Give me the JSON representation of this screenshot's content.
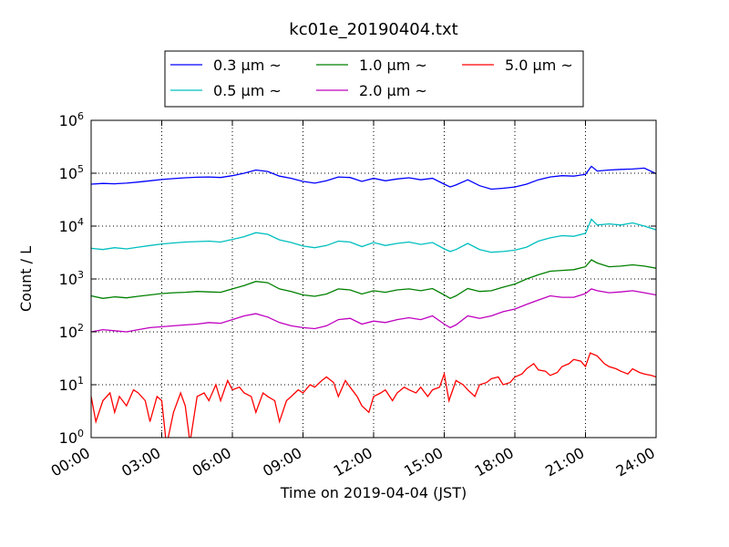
{
  "chart_data": {
    "type": "line",
    "title": "kc01e_20190404.txt",
    "xlabel": "Time on 2019-04-04 (JST)",
    "ylabel": "Count / L",
    "x_unit": "hours",
    "xlim": [
      0,
      24
    ],
    "xticks": [
      0,
      3,
      6,
      9,
      12,
      15,
      18,
      21,
      24
    ],
    "xtick_labels": [
      "00:00",
      "03:00",
      "06:00",
      "09:00",
      "12:00",
      "15:00",
      "18:00",
      "21:00",
      "24:00"
    ],
    "yscale": "log",
    "ylim": [
      1,
      1000000
    ],
    "ytick_exponents": [
      0,
      1,
      2,
      3,
      4,
      5,
      6
    ],
    "ytick_base": "10",
    "grid": true,
    "legend_placement": "top-center",
    "series": [
      {
        "name": "0.3 μm ~",
        "color": "#0000ff",
        "x": [
          0,
          0.5,
          1,
          1.5,
          2,
          2.5,
          3,
          3.5,
          4,
          4.5,
          5,
          5.5,
          6,
          6.5,
          7,
          7.5,
          8,
          8.5,
          9,
          9.5,
          10,
          10.5,
          11,
          11.5,
          12,
          12.5,
          13,
          13.5,
          14,
          14.5,
          15,
          15.25,
          15.5,
          16,
          16.5,
          17,
          17.5,
          18,
          18.5,
          19,
          19.5,
          20,
          20.5,
          21,
          21.25,
          21.5,
          22,
          22.5,
          23,
          23.5,
          24
        ],
        "y": [
          62000,
          64000,
          63000,
          65000,
          68000,
          72000,
          76000,
          79000,
          82000,
          84000,
          85000,
          83000,
          90000,
          100000,
          115000,
          108000,
          88000,
          80000,
          70000,
          65000,
          72000,
          85000,
          83000,
          70000,
          80000,
          72000,
          78000,
          82000,
          75000,
          80000,
          62000,
          55000,
          60000,
          75000,
          58000,
          50000,
          52000,
          55000,
          62000,
          75000,
          85000,
          90000,
          88000,
          95000,
          135000,
          110000,
          115000,
          118000,
          120000,
          125000,
          98000
        ]
      },
      {
        "name": "0.5 μm ~",
        "color": "#00bfbf",
        "x": [
          0,
          0.5,
          1,
          1.5,
          2,
          2.5,
          3,
          3.5,
          4,
          4.5,
          5,
          5.5,
          6,
          6.5,
          7,
          7.5,
          8,
          8.5,
          9,
          9.5,
          10,
          10.5,
          11,
          11.5,
          12,
          12.5,
          13,
          13.5,
          14,
          14.5,
          15,
          15.25,
          15.5,
          16,
          16.5,
          17,
          17.5,
          18,
          18.5,
          19,
          19.5,
          20,
          20.5,
          21,
          21.25,
          21.5,
          22,
          22.5,
          23,
          23.5,
          24
        ],
        "y": [
          3800,
          3600,
          3900,
          3700,
          4000,
          4300,
          4600,
          4800,
          5000,
          5100,
          5200,
          5000,
          5600,
          6300,
          7500,
          7000,
          5500,
          4900,
          4200,
          3900,
          4300,
          5200,
          5000,
          4100,
          4900,
          4300,
          4700,
          5000,
          4500,
          4900,
          3700,
          3300,
          3600,
          4700,
          3600,
          3200,
          3300,
          3500,
          4000,
          5200,
          6000,
          6600,
          6400,
          7300,
          13500,
          10500,
          11000,
          10500,
          11500,
          10000,
          8500
        ]
      },
      {
        "name": "1.0 μm ~",
        "color": "#008000",
        "x": [
          0,
          0.5,
          1,
          1.5,
          2,
          2.5,
          3,
          3.5,
          4,
          4.5,
          5,
          5.5,
          6,
          6.5,
          7,
          7.5,
          8,
          8.5,
          9,
          9.5,
          10,
          10.5,
          11,
          11.5,
          12,
          12.5,
          13,
          13.5,
          14,
          14.5,
          15,
          15.25,
          15.5,
          16,
          16.5,
          17,
          17.5,
          18,
          18.5,
          19,
          19.5,
          20,
          20.5,
          21,
          21.25,
          21.5,
          22,
          22.5,
          23,
          23.5,
          24
        ],
        "y": [
          480,
          430,
          460,
          440,
          470,
          500,
          530,
          550,
          560,
          580,
          570,
          560,
          650,
          750,
          900,
          850,
          650,
          580,
          500,
          470,
          520,
          650,
          620,
          520,
          600,
          560,
          620,
          650,
          600,
          660,
          500,
          430,
          480,
          660,
          580,
          600,
          700,
          800,
          1000,
          1200,
          1400,
          1450,
          1500,
          1700,
          2300,
          2000,
          1700,
          1750,
          1850,
          1750,
          1600
        ]
      },
      {
        "name": "2.0 μm ~",
        "color": "#bf00bf",
        "x": [
          0,
          0.5,
          1,
          1.5,
          2,
          2.5,
          3,
          3.5,
          4,
          4.5,
          5,
          5.5,
          6,
          6.5,
          7,
          7.5,
          8,
          8.5,
          9,
          9.5,
          10,
          10.5,
          11,
          11.5,
          12,
          12.5,
          13,
          13.5,
          14,
          14.5,
          15,
          15.25,
          15.5,
          16,
          16.5,
          17,
          17.5,
          18,
          18.5,
          19,
          19.5,
          20,
          20.5,
          21,
          21.25,
          21.5,
          22,
          22.5,
          23,
          23.5,
          24
        ],
        "y": [
          100,
          110,
          105,
          100,
          110,
          120,
          125,
          130,
          135,
          140,
          150,
          145,
          170,
          200,
          220,
          190,
          150,
          130,
          120,
          115,
          130,
          170,
          180,
          140,
          160,
          150,
          170,
          185,
          170,
          200,
          140,
          120,
          135,
          200,
          180,
          200,
          240,
          270,
          330,
          400,
          480,
          450,
          450,
          530,
          650,
          600,
          550,
          570,
          600,
          550,
          500
        ]
      },
      {
        "name": "5.0 μm ~",
        "color": "#ff0000",
        "x": [
          0,
          0.2,
          0.5,
          0.8,
          1,
          1.2,
          1.5,
          1.8,
          2,
          2.3,
          2.5,
          2.8,
          3,
          3.2,
          3.5,
          3.8,
          4,
          4.2,
          4.5,
          4.8,
          5,
          5.3,
          5.5,
          5.8,
          6,
          6.3,
          6.5,
          6.8,
          7,
          7.3,
          7.5,
          7.8,
          8,
          8.3,
          8.5,
          8.8,
          9,
          9.3,
          9.5,
          9.8,
          10,
          10.3,
          10.5,
          10.8,
          11,
          11.3,
          11.5,
          11.8,
          12,
          12.3,
          12.5,
          12.8,
          13,
          13.3,
          13.5,
          13.8,
          14,
          14.3,
          14.5,
          14.8,
          15,
          15.2,
          15.5,
          15.8,
          16,
          16.3,
          16.5,
          16.8,
          17,
          17.3,
          17.5,
          17.8,
          18,
          18.3,
          18.5,
          18.8,
          19,
          19.3,
          19.5,
          19.8,
          20,
          20.3,
          20.5,
          20.8,
          21,
          21.2,
          21.5,
          21.8,
          22,
          22.3,
          22.5,
          22.8,
          23,
          23.3,
          23.5,
          23.8,
          24
        ],
        "y": [
          6,
          2,
          5,
          7,
          3,
          6,
          4,
          8,
          7,
          5,
          2,
          6,
          5,
          0.7,
          3,
          7,
          4,
          0.8,
          6,
          7,
          5,
          10,
          5,
          12,
          8,
          9,
          7,
          6,
          3,
          7,
          6,
          5,
          2,
          5,
          6,
          8,
          7,
          10,
          9,
          12,
          14,
          11,
          6,
          12,
          9,
          6,
          4,
          3,
          6,
          7,
          8,
          5,
          7,
          9,
          8,
          7,
          9,
          6,
          8,
          9,
          16,
          5,
          12,
          10,
          8,
          6,
          10,
          11,
          13,
          14,
          10,
          11,
          14,
          16,
          20,
          25,
          19,
          18,
          15,
          17,
          22,
          25,
          30,
          28,
          22,
          40,
          35,
          25,
          22,
          20,
          18,
          16,
          20,
          17,
          16,
          15,
          14
        ]
      }
    ]
  }
}
